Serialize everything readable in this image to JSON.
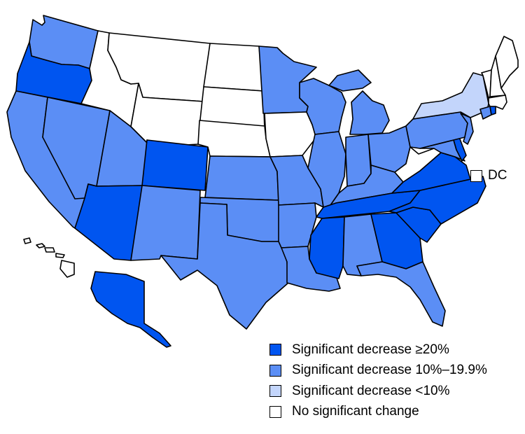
{
  "colors": {
    "decrease_20_plus": "#0055f0",
    "decrease_10_to_19_9": "#5b8ef5",
    "decrease_under_10": "#c3d5fb",
    "no_change": "#ffffff"
  },
  "legend": [
    {
      "label": "Significant decrease ≥20%",
      "color_key": "decrease_20_plus"
    },
    {
      "label": "Significant decrease 10%–19.9%",
      "color_key": "decrease_10_to_19_9"
    },
    {
      "label": "Significant decrease <10%",
      "color_key": "decrease_under_10"
    },
    {
      "label": "No significant change",
      "color_key": "no_change"
    }
  ],
  "dc": {
    "label": "DC",
    "color_key": "no_change"
  },
  "states": {
    "WA": "decrease_10_to_19_9",
    "OR": "decrease_20_plus",
    "CA": "decrease_10_to_19_9",
    "NV": "decrease_10_to_19_9",
    "ID": "no_change",
    "MT": "no_change",
    "WY": "no_change",
    "UT": "decrease_10_to_19_9",
    "AZ": "decrease_20_plus",
    "CO": "decrease_20_plus",
    "NM": "decrease_10_to_19_9",
    "ND": "no_change",
    "SD": "no_change",
    "NE": "no_change",
    "KS": "decrease_10_to_19_9",
    "OK": "decrease_10_to_19_9",
    "TX": "decrease_10_to_19_9",
    "MN": "decrease_10_to_19_9",
    "IA": "no_change",
    "MO": "decrease_10_to_19_9",
    "AR": "decrease_10_to_19_9",
    "LA": "decrease_10_to_19_9",
    "WI": "decrease_10_to_19_9",
    "IL": "decrease_10_to_19_9",
    "MI": "decrease_10_to_19_9",
    "IN": "decrease_10_to_19_9",
    "OH": "decrease_10_to_19_9",
    "KY": "decrease_10_to_19_9",
    "TN": "decrease_20_plus",
    "MS": "decrease_20_plus",
    "AL": "decrease_10_to_19_9",
    "GA": "decrease_20_plus",
    "FL": "decrease_10_to_19_9",
    "SC": "decrease_20_plus",
    "NC": "decrease_20_plus",
    "VA": "decrease_20_plus",
    "WV": "no_change",
    "MD": "decrease_10_to_19_9",
    "DE": "decrease_20_plus",
    "PA": "decrease_10_to_19_9",
    "NJ": "decrease_10_to_19_9",
    "NY": "decrease_under_10",
    "CT": "decrease_10_to_19_9",
    "RI": "decrease_20_plus",
    "MA": "no_change",
    "VT": "no_change",
    "NH": "no_change",
    "ME": "no_change",
    "AK": "decrease_20_plus",
    "HI": "no_change"
  }
}
